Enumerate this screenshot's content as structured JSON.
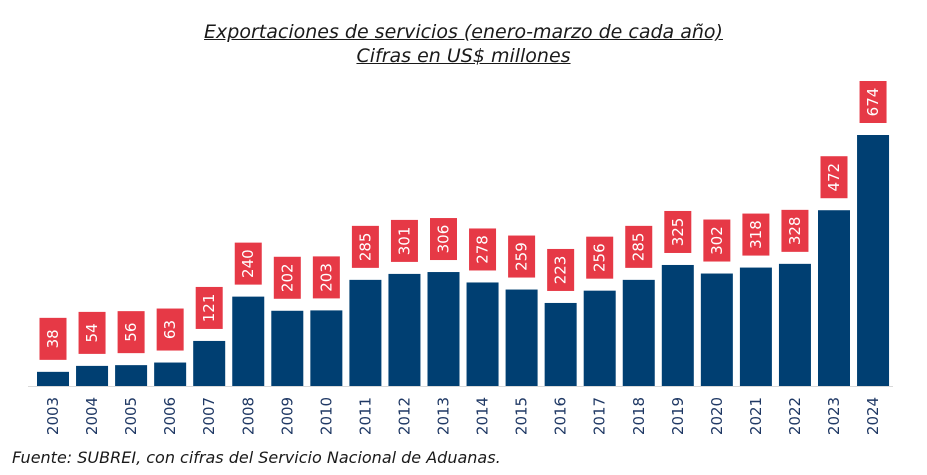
{
  "chart_data": {
    "type": "bar",
    "title": "Exportaciones de servicios (enero-marzo de cada año)",
    "subtitle": "Cifras en US$ millones",
    "categories": [
      "2003",
      "2004",
      "2005",
      "2006",
      "2007",
      "2008",
      "2009",
      "2010",
      "2011",
      "2012",
      "2013",
      "2014",
      "2015",
      "2016",
      "2017",
      "2018",
      "2019",
      "2020",
      "2021",
      "2022",
      "2023",
      "2024"
    ],
    "values": [
      38,
      54,
      56,
      63,
      121,
      240,
      202,
      203,
      285,
      301,
      306,
      278,
      259,
      223,
      256,
      285,
      325,
      302,
      318,
      328,
      472,
      674
    ],
    "xlabel": "",
    "ylabel": "",
    "ylim": [
      0,
      674
    ],
    "grid": false,
    "legend": "none",
    "bar_color": "#003f72",
    "label_box_color": "#e63946",
    "label_text_color": "#ffffff"
  },
  "source": "Fuente: SUBREI, con cifras del Servicio Nacional de Aduanas."
}
